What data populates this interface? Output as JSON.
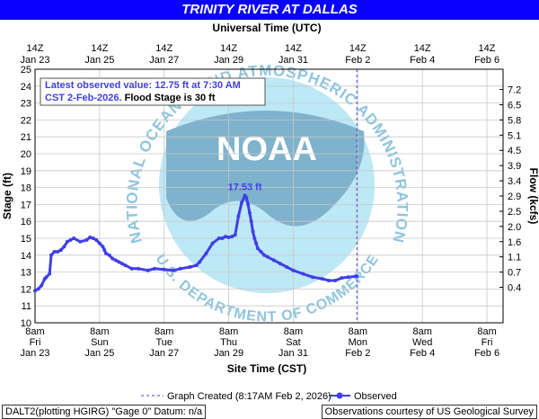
{
  "title": "TRINITY RIVER AT DALLAS",
  "top_axis_label": "Universal Time (UTC)",
  "bottom_axis_label": "Site Time (CST)",
  "y_left_label": "Stage (ft)",
  "y_right_label": "Flow (kcfs)",
  "top_ticks": [
    {
      "line1": "14Z",
      "line2": "Jan 23"
    },
    {
      "line1": "14Z",
      "line2": "Jan 25"
    },
    {
      "line1": "14Z",
      "line2": "Jan 27"
    },
    {
      "line1": "14Z",
      "line2": "Jan 29"
    },
    {
      "line1": "14Z",
      "line2": "Jan 31"
    },
    {
      "line1": "14Z",
      "line2": "Feb  2"
    },
    {
      "line1": "14Z",
      "line2": "Feb  4"
    },
    {
      "line1": "14Z",
      "line2": "Feb  6"
    }
  ],
  "bottom_ticks": [
    {
      "line1": "8am",
      "line2": "Fri",
      "line3": "Jan 23"
    },
    {
      "line1": "8am",
      "line2": "Sun",
      "line3": "Jan 25"
    },
    {
      "line1": "8am",
      "line2": "Tue",
      "line3": "Jan 27"
    },
    {
      "line1": "8am",
      "line2": "Thu",
      "line3": "Jan 29"
    },
    {
      "line1": "8am",
      "line2": "Sat",
      "line3": "Jan 31"
    },
    {
      "line1": "8am",
      "line2": "Mon",
      "line3": "Feb 2"
    },
    {
      "line1": "8am",
      "line2": "Wed",
      "line3": "Feb 4"
    },
    {
      "line1": "8am",
      "line2": "Fri",
      "line3": "Feb 6"
    }
  ],
  "info_box": {
    "line1": "Latest observed value: 12.75 ft at 7:30 AM",
    "line2_blue": "CST 2-Feb-2026.",
    "line2_black": " Flood Stage is 30 ft"
  },
  "peak_label": "17.53 ft",
  "legend": {
    "created": "Graph Created (8:17AM Feb 2, 2026)",
    "observed": "Observed"
  },
  "logo": {
    "name": "NOAA",
    "ring_text": "NATIONAL OCEANIC AND ATMOSPHERIC ADMINISTRATION",
    "lower_text": "U.S. DEPARTMENT OF COMMERCE"
  },
  "footer_left": "DALT2(plotting HGIRG) \"Gage 0\" Datum: n/a",
  "footer_right": "Observations courtesy of US Geological Survey",
  "colors": {
    "title_bg": "#0a00ff",
    "series": "#3f3fe6",
    "grid": "#c8c8c8",
    "logo_light": "#bde8f5",
    "logo_dark": "#7fb2cc"
  },
  "chart_data": {
    "type": "line",
    "x_unit": "days since 8am CST Jan 23",
    "xlim": [
      0,
      14.5
    ],
    "ylim": [
      10,
      25
    ],
    "y_ticks": [
      10,
      11,
      12,
      13,
      14,
      15,
      16,
      17,
      18,
      19,
      20,
      21,
      22,
      23,
      24,
      25
    ],
    "y_right_ticks": [
      {
        "stage": 12.1,
        "label": "0.4"
      },
      {
        "stage": 13.0,
        "label": "0.7"
      },
      {
        "stage": 13.9,
        "label": "1.1"
      },
      {
        "stage": 14.8,
        "label": "1.6"
      },
      {
        "stage": 15.7,
        "label": "2.0"
      },
      {
        "stage": 16.6,
        "label": "2.5"
      },
      {
        "stage": 17.5,
        "label": "2.9"
      },
      {
        "stage": 18.4,
        "label": "3.4"
      },
      {
        "stage": 19.3,
        "label": "3.9"
      },
      {
        "stage": 20.2,
        "label": "4.5"
      },
      {
        "stage": 21.1,
        "label": "5.1"
      },
      {
        "stage": 22.0,
        "label": "5.8"
      },
      {
        "stage": 22.9,
        "label": "6.5"
      },
      {
        "stage": 23.8,
        "label": "7.2"
      }
    ],
    "created_x": 9.97,
    "series": [
      {
        "name": "Observed",
        "x": [
          0.0,
          0.1,
          0.2,
          0.3,
          0.35,
          0.45,
          0.5,
          0.6,
          0.7,
          0.8,
          0.9,
          1.0,
          1.1,
          1.2,
          1.4,
          1.6,
          1.7,
          1.8,
          1.9,
          2.0,
          2.1,
          2.15,
          2.2,
          2.3,
          2.4,
          2.5,
          2.6,
          2.7,
          2.8,
          3.0,
          3.2,
          3.5,
          3.7,
          4.0,
          4.3,
          4.5,
          4.8,
          5.0,
          5.1,
          5.3,
          5.5,
          5.7,
          5.8,
          5.9,
          6.0,
          6.1,
          6.2,
          6.3,
          6.4,
          6.5,
          6.55,
          6.6,
          6.65,
          6.7,
          6.75,
          6.8,
          6.85,
          6.9,
          7.0,
          7.1,
          7.2,
          7.4,
          7.6,
          7.8,
          8.0,
          8.3,
          8.6,
          8.9,
          9.1,
          9.3,
          9.5,
          9.7,
          9.97
        ],
        "y": [
          11.9,
          12.0,
          12.2,
          12.6,
          12.7,
          12.9,
          14.0,
          14.2,
          14.2,
          14.3,
          14.5,
          14.8,
          14.9,
          15.0,
          14.8,
          14.9,
          15.05,
          15.0,
          14.9,
          14.7,
          14.5,
          14.3,
          14.1,
          14.0,
          13.8,
          13.7,
          13.6,
          13.5,
          13.4,
          13.2,
          13.2,
          13.1,
          13.2,
          13.15,
          13.1,
          13.2,
          13.3,
          13.4,
          13.6,
          14.1,
          14.7,
          15.0,
          15.0,
          15.1,
          15.05,
          15.1,
          15.2,
          16.3,
          17.1,
          17.53,
          17.4,
          17.0,
          16.5,
          16.0,
          15.4,
          15.0,
          14.7,
          14.4,
          14.2,
          14.0,
          13.9,
          13.7,
          13.5,
          13.3,
          13.1,
          12.9,
          12.7,
          12.6,
          12.5,
          12.5,
          12.65,
          12.7,
          12.75
        ]
      }
    ]
  }
}
